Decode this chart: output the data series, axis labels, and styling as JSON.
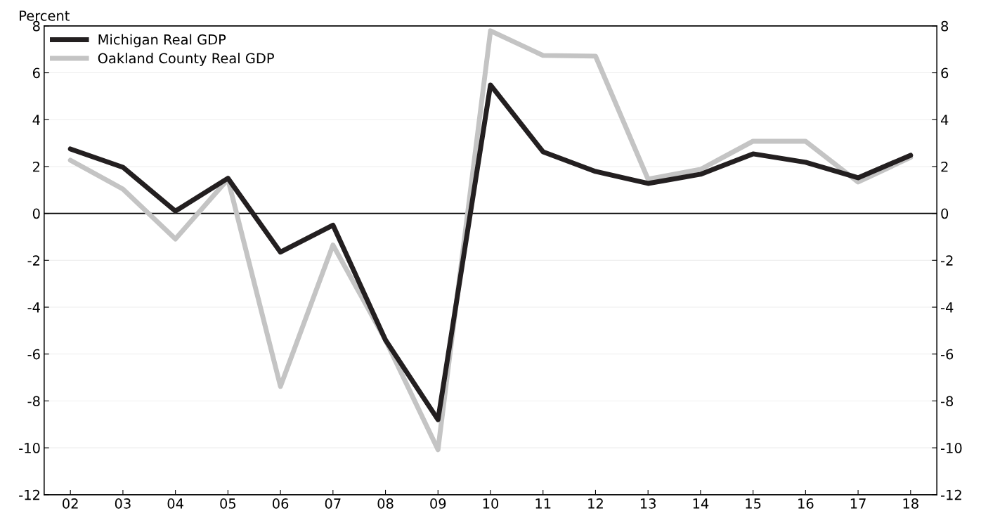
{
  "chart_data": {
    "type": "line",
    "ylabel": "Percent",
    "categories": [
      "02",
      "03",
      "04",
      "05",
      "06",
      "07",
      "08",
      "09",
      "10",
      "11",
      "12",
      "13",
      "14",
      "15",
      "16",
      "17",
      "18"
    ],
    "series": [
      {
        "name": "Michigan Real GDP",
        "color": "#231f20",
        "values": [
          2.75,
          1.97,
          0.1,
          1.5,
          -1.65,
          -0.5,
          -5.4,
          -8.8,
          5.48,
          2.63,
          1.79,
          1.28,
          1.67,
          2.54,
          2.18,
          1.52,
          2.48
        ]
      },
      {
        "name": "Oakland County Real GDP",
        "color": "#c4c4c4",
        "values": [
          2.27,
          1.04,
          -1.09,
          1.46,
          -7.38,
          -1.35,
          -5.4,
          -10.08,
          7.79,
          6.74,
          6.71,
          1.46,
          1.88,
          3.08,
          3.08,
          1.34,
          2.39
        ]
      }
    ],
    "ylim": [
      -12,
      8
    ],
    "yticks": [
      {
        "value": -12,
        "label": "-12"
      },
      {
        "value": -10,
        "label": "-10"
      },
      {
        "value": -8,
        "label": "-8"
      },
      {
        "value": -6,
        "label": "-6"
      },
      {
        "value": -4,
        "label": "-4"
      },
      {
        "value": -2,
        "label": "-2"
      },
      0,
      2,
      4,
      6,
      8
    ],
    "y2lim": [
      -12,
      8
    ],
    "y2ticks": [
      {
        "value": -12,
        "label": "-12"
      },
      {
        "value": -10,
        "label": "-10"
      },
      {
        "value": -8,
        "label": "-8"
      },
      {
        "value": -6,
        "label": "-6"
      },
      {
        "value": -4,
        "label": "-4"
      },
      {
        "value": -2,
        "label": "-2"
      },
      0,
      2,
      4,
      6,
      8
    ],
    "ref_lines": [
      {
        "axis": "y",
        "value": 0,
        "color": "#000000"
      }
    ],
    "grid": "y",
    "legend": "top left",
    "marker": "none",
    "line_style": "solid"
  }
}
